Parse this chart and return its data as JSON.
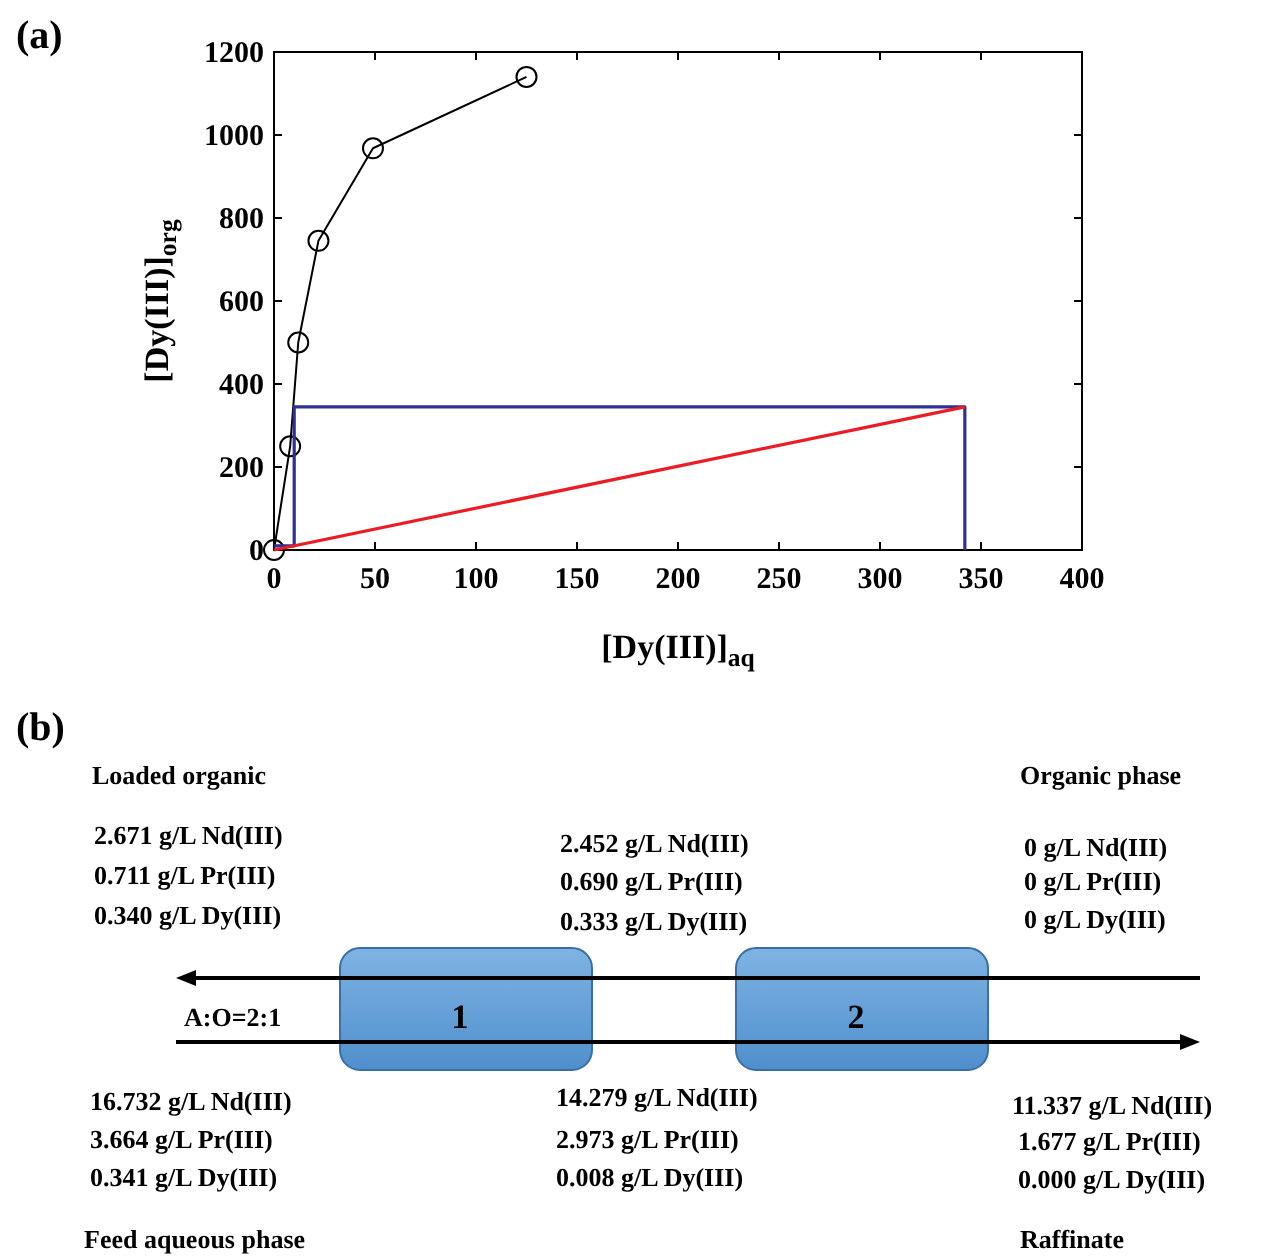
{
  "chart_data": [
    {
      "type": "line",
      "xlabel": "[Dy(III)]$_{aq}$",
      "ylabel": "[Dy(III)]$_{org}$",
      "annotations": [
        "(a)"
      ],
      "xlim": [
        0,
        400
      ],
      "ylim": [
        0,
        1200
      ],
      "xticks": [
        0,
        50,
        100,
        150,
        200,
        250,
        300,
        350,
        400
      ],
      "yticks": [
        0,
        200,
        400,
        600,
        800,
        1000,
        1200
      ],
      "grid": false,
      "line_style": "solid",
      "series": [
        {
          "color": "#000000",
          "marker": "circle",
          "x": [
            0,
            8,
            12,
            22,
            49,
            125
          ],
          "values": [
            0,
            250,
            500,
            745,
            968,
            1140
          ]
        },
        {
          "color": "#2e3192",
          "marker": "none",
          "x": [
            0,
            10,
            10,
            342,
            342
          ],
          "values": [
            10,
            10,
            345,
            345,
            0
          ]
        },
        {
          "color": "#ed1c24",
          "marker": "none",
          "x": [
            0,
            342
          ],
          "values": [
            0,
            345
          ]
        }
      ]
    },
    {
      "type": "other",
      "annotations": [
        "(b)",
        "Loaded organic",
        "2.671 g/L Nd(III)",
        "0.711 g/L Pr(III)",
        "0.340 g/L Dy(III)",
        "2.452 g/L Nd(III)",
        "0.690 g/L Pr(III)",
        "0.333 g/L Dy(III)",
        "Organic phase",
        "0 g/L Nd(III)",
        "0 g/L Pr(III)",
        "0 g/L Dy(III)",
        "A:O=2:1",
        "1",
        "2",
        "16.732 g/L Nd(III)",
        "3.664 g/L Pr(III)",
        "0.341 g/L Dy(III)",
        "14.279 g/L Nd(III)",
        "2.973 g/L Pr(III)",
        "0.008 g/L Dy(III)",
        "11.337 g/L Nd(III)",
        "1.677 g/L Pr(III)",
        "0.000 g/L Dy(III)",
        "Feed aqueous phase",
        "Raffinate"
      ]
    }
  ]
}
